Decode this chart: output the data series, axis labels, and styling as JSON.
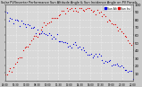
{
  "title": "Solar PV/Inverter Performance Sun Altitude Angle & Sun Incidence Angle on PV Panels",
  "legend_labels": [
    "HOT",
    "Sun Alt",
    "Sun Inc"
  ],
  "legend_colors": [
    "#0000dd",
    "#dd0000"
  ],
  "bg_color": "#c8c8c8",
  "plot_bg": "#d8d8d8",
  "ylim": [
    0,
    100
  ],
  "xlim": [
    0,
    1
  ],
  "grid_color": "#ffffff",
  "dot_size": 0.8,
  "n_points": 80,
  "yticks": [
    10,
    20,
    30,
    40,
    50,
    60,
    70,
    80,
    90,
    100
  ]
}
